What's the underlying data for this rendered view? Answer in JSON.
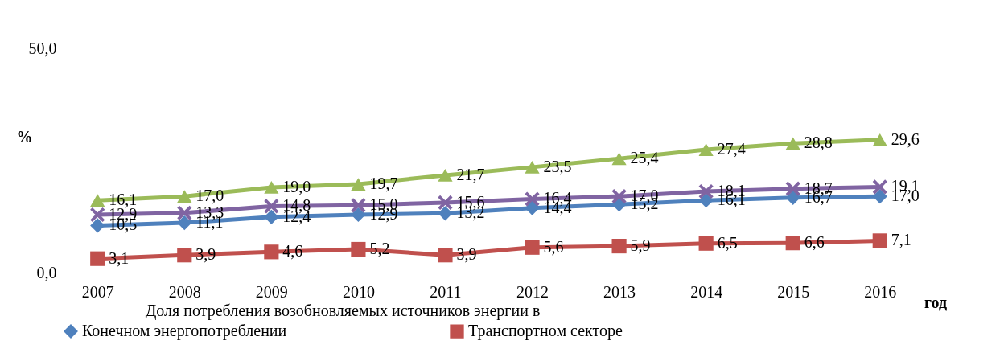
{
  "chart_data": {
    "type": "line",
    "ylabel": "%",
    "xlabel": "год",
    "legend_title": "Доля потребления возобновляемых источников энергии в",
    "categories": [
      "2007",
      "2008",
      "2009",
      "2010",
      "2011",
      "2012",
      "2013",
      "2014",
      "2015",
      "2016"
    ],
    "series": [
      {
        "name": "Конечном энергопотреблении",
        "color": "#4f81bd",
        "marker": "diamond",
        "values": [
          10.5,
          11.1,
          12.4,
          12.9,
          13.2,
          14.4,
          15.2,
          16.1,
          16.7,
          17.0
        ],
        "value_labels": [
          "10,5",
          "11,1",
          "12,4",
          "12,9",
          "13,2",
          "14,4",
          "15,2",
          "16,1",
          "16,7",
          "17,0"
        ]
      },
      {
        "name": "Транспортном секторе",
        "color": "#c0504d",
        "marker": "square",
        "values": [
          3.1,
          3.9,
          4.6,
          5.2,
          3.9,
          5.6,
          5.9,
          6.5,
          6.6,
          7.1
        ],
        "value_labels": [
          "3,1",
          "3,9",
          "4,6",
          "5,2",
          "3,9",
          "5,6",
          "5,9",
          "6,5",
          "6,6",
          "7,1"
        ]
      },
      {
        "color": "#9bbb59",
        "marker": "triangle",
        "values": [
          16.1,
          17.0,
          19.0,
          19.7,
          21.7,
          23.5,
          25.4,
          27.4,
          28.8,
          29.6
        ],
        "value_labels": [
          "16,1",
          "17,0",
          "19,0",
          "19,7",
          "21,7",
          "23,5",
          "25,4",
          "27,4",
          "28,8",
          "29,6"
        ]
      },
      {
        "color": "#8064a2",
        "marker": "cross",
        "values": [
          12.9,
          13.3,
          14.8,
          15.0,
          15.6,
          16.4,
          17.0,
          18.1,
          18.7,
          19.1
        ],
        "value_labels": [
          "12,9",
          "13,3",
          "14,8",
          "15,0",
          "15,6",
          "16,4",
          "17,0",
          "18,1",
          "18,7",
          "19,1"
        ]
      }
    ],
    "ylim": [
      0,
      50
    ],
    "yticks": [
      {
        "value": 0,
        "label": "0,0"
      },
      {
        "value": 50,
        "label": "50,0"
      }
    ],
    "grid": false,
    "legend": "bottom",
    "line_style": "solid"
  }
}
